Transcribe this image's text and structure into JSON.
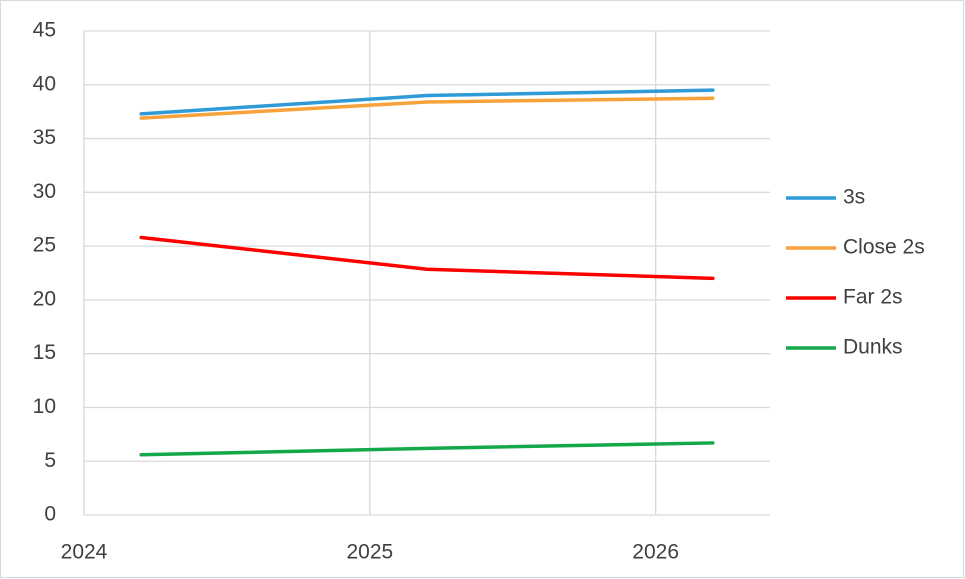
{
  "chart_data": {
    "type": "line",
    "x": [
      2024.2,
      2025.2,
      2026.2
    ],
    "series": [
      {
        "name": "3s",
        "color": "#2e9bd6",
        "values": [
          37.3,
          39.0,
          39.5
        ]
      },
      {
        "name": "Close 2s",
        "color": "#f7a23b",
        "values": [
          36.9,
          38.4,
          38.75
        ]
      },
      {
        "name": "Far 2s",
        "color": "#ff0000",
        "values": [
          25.8,
          22.85,
          22.0
        ]
      },
      {
        "name": "Dunks",
        "color": "#15a84b",
        "values": [
          5.6,
          6.2,
          6.7
        ]
      }
    ],
    "xlim": [
      2024,
      2026.4
    ],
    "xticks": [
      2024,
      2025,
      2026
    ],
    "ylim": [
      0,
      45
    ],
    "yticks": [
      0,
      5,
      10,
      15,
      20,
      25,
      30,
      35,
      40,
      45
    ],
    "grid": true,
    "legend": "right"
  }
}
